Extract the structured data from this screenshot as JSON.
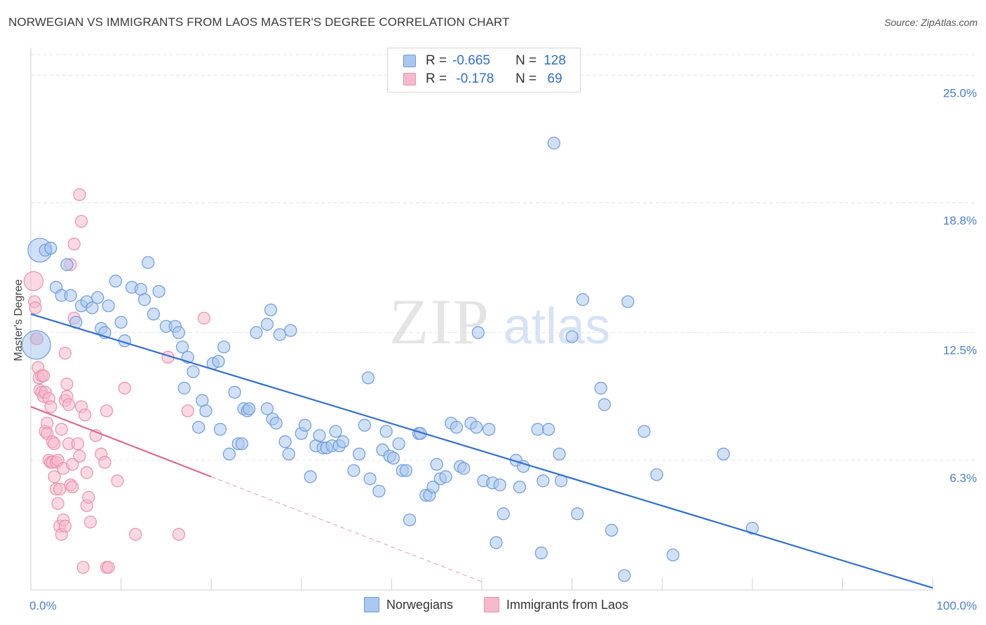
{
  "title": "NORWEGIAN VS IMMIGRANTS FROM LAOS MASTER'S DEGREE CORRELATION CHART",
  "source": "Source: ZipAtlas.com",
  "watermark": {
    "zip": "ZIP",
    "atlas": "atlas"
  },
  "colors": {
    "blue_fill": "#a9c7ef",
    "blue_stroke": "#6b9be0",
    "blue_line": "#2e6fd1",
    "pink_fill": "#f6b9cc",
    "pink_stroke": "#ec8fac",
    "pink_line": "#e06a93",
    "grid": "#e3e3e3",
    "tick_text": "#4a7fd0"
  },
  "legend": {
    "rows": [
      {
        "r_label": "R =",
        "r_value": "-0.665",
        "n_label": "N =",
        "n_value": "128"
      },
      {
        "r_label": "R =",
        "r_value": " -0.178",
        "n_label": "N =",
        "n_value": " 69"
      }
    ]
  },
  "bottom_legend": {
    "series1": "Norwegians",
    "series2": "Immigrants from Laos"
  },
  "chart_data": {
    "type": "scatter",
    "ylabel": "Master's Degree",
    "xlabel": "",
    "xlim": [
      0,
      100
    ],
    "ylim": [
      0,
      26.2
    ],
    "x_tick_labels": [
      "0.0%",
      "100.0%"
    ],
    "y_ticks": [
      {
        "value": 6.3,
        "label": "6.3%"
      },
      {
        "value": 12.5,
        "label": "12.5%"
      },
      {
        "value": 18.8,
        "label": "18.8%"
      },
      {
        "value": 25.0,
        "label": "25.0%"
      }
    ],
    "series": [
      {
        "name": "Norwegians",
        "r": -0.665,
        "n": 128,
        "trend": {
          "x0": 0,
          "y0": 13.4,
          "x1": 100,
          "y1": 0.1,
          "dashed_to": 100
        },
        "points": [
          [
            1.0,
            16.5,
            2
          ],
          [
            1.6,
            16.5,
            1
          ],
          [
            2.2,
            16.6,
            1
          ],
          [
            0.6,
            11.9,
            2.4
          ],
          [
            2.8,
            14.7,
            1
          ],
          [
            3.4,
            14.3,
            1
          ],
          [
            4.0,
            15.8,
            1
          ],
          [
            4.4,
            14.3,
            1
          ],
          [
            5.0,
            13.0,
            1
          ],
          [
            5.6,
            13.8,
            1
          ],
          [
            6.2,
            14.0,
            1
          ],
          [
            6.8,
            13.7,
            1
          ],
          [
            7.4,
            14.2,
            1
          ],
          [
            7.8,
            12.7,
            1
          ],
          [
            8.6,
            13.8,
            1
          ],
          [
            9.4,
            15.0,
            1
          ],
          [
            8.2,
            12.5,
            1
          ],
          [
            10.4,
            12.1,
            1
          ],
          [
            11.2,
            14.7,
            1
          ],
          [
            12.2,
            14.6,
            1
          ],
          [
            12.6,
            14.1,
            1
          ],
          [
            13.0,
            15.9,
            1
          ],
          [
            10.0,
            13.0,
            1
          ],
          [
            13.6,
            13.4,
            1
          ],
          [
            14.2,
            14.5,
            1
          ],
          [
            15.0,
            12.8,
            1
          ],
          [
            16.0,
            12.8,
            1
          ],
          [
            16.4,
            12.5,
            1
          ],
          [
            16.8,
            11.8,
            1
          ],
          [
            17.4,
            11.3,
            1
          ],
          [
            18.0,
            10.6,
            1
          ],
          [
            17.0,
            9.8,
            1
          ],
          [
            19.0,
            9.2,
            1
          ],
          [
            19.4,
            8.7,
            1
          ],
          [
            20.2,
            11.0,
            1
          ],
          [
            20.8,
            11.1,
            1
          ],
          [
            21.4,
            11.8,
            1
          ],
          [
            22.6,
            9.6,
            1
          ],
          [
            23.6,
            8.8,
            1
          ],
          [
            24.0,
            8.7,
            1
          ],
          [
            24.2,
            8.8,
            1
          ],
          [
            25.0,
            12.5,
            1
          ],
          [
            26.2,
            12.9,
            1
          ],
          [
            26.6,
            13.6,
            1
          ],
          [
            27.6,
            12.4,
            1
          ],
          [
            28.8,
            12.6,
            1
          ],
          [
            18.6,
            7.9,
            1
          ],
          [
            21.0,
            7.8,
            1
          ],
          [
            22.0,
            6.6,
            1
          ],
          [
            23.0,
            7.1,
            1
          ],
          [
            23.4,
            7.1,
            1
          ],
          [
            26.2,
            8.8,
            1
          ],
          [
            26.8,
            8.3,
            1
          ],
          [
            27.2,
            8.1,
            1
          ],
          [
            28.2,
            7.2,
            1
          ],
          [
            28.6,
            6.6,
            1
          ],
          [
            30.0,
            7.6,
            1
          ],
          [
            30.4,
            8.0,
            1
          ],
          [
            31.0,
            5.5,
            1
          ],
          [
            31.6,
            7.0,
            1
          ],
          [
            32.0,
            7.5,
            1
          ],
          [
            32.4,
            6.9,
            1
          ],
          [
            32.8,
            6.9,
            1
          ],
          [
            33.4,
            7.0,
            1
          ],
          [
            33.8,
            7.7,
            1
          ],
          [
            34.2,
            7.0,
            1
          ],
          [
            34.6,
            7.2,
            1
          ],
          [
            35.8,
            5.8,
            1
          ],
          [
            36.4,
            6.6,
            1
          ],
          [
            37.0,
            8.0,
            1
          ],
          [
            37.4,
            10.3,
            1
          ],
          [
            37.6,
            5.4,
            1
          ],
          [
            38.6,
            4.8,
            1
          ],
          [
            39.0,
            6.8,
            1
          ],
          [
            39.4,
            7.7,
            1
          ],
          [
            39.8,
            6.5,
            1
          ],
          [
            40.2,
            6.4,
            1
          ],
          [
            40.8,
            7.1,
            1
          ],
          [
            41.2,
            5.8,
            1
          ],
          [
            41.6,
            5.8,
            1
          ],
          [
            42.0,
            3.4,
            1
          ],
          [
            43.0,
            7.6,
            1
          ],
          [
            43.2,
            7.6,
            1
          ],
          [
            43.8,
            4.6,
            1
          ],
          [
            44.2,
            4.6,
            1
          ],
          [
            44.6,
            5.0,
            1
          ],
          [
            45.0,
            6.1,
            1
          ],
          [
            45.4,
            5.4,
            1
          ],
          [
            46.0,
            5.5,
            1
          ],
          [
            46.6,
            8.1,
            1
          ],
          [
            47.2,
            7.9,
            1
          ],
          [
            47.6,
            6.0,
            1
          ],
          [
            48.0,
            5.9,
            1
          ],
          [
            48.8,
            8.1,
            1
          ],
          [
            49.4,
            7.9,
            1
          ],
          [
            49.6,
            12.5,
            1
          ],
          [
            50.2,
            5.3,
            1
          ],
          [
            50.8,
            7.8,
            1
          ],
          [
            51.2,
            5.2,
            1
          ],
          [
            51.6,
            2.3,
            1
          ],
          [
            52.0,
            5.1,
            1
          ],
          [
            52.4,
            3.7,
            1
          ],
          [
            53.8,
            6.3,
            1
          ],
          [
            54.2,
            5.0,
            1
          ],
          [
            54.6,
            6.0,
            1
          ],
          [
            56.2,
            7.8,
            1
          ],
          [
            56.6,
            1.8,
            1
          ],
          [
            56.8,
            5.3,
            1
          ],
          [
            57.4,
            7.8,
            1
          ],
          [
            58.0,
            21.7,
            1
          ],
          [
            58.6,
            6.6,
            1
          ],
          [
            58.8,
            5.3,
            1
          ],
          [
            60.0,
            12.3,
            1
          ],
          [
            60.6,
            3.7,
            1
          ],
          [
            61.2,
            14.1,
            1
          ],
          [
            63.2,
            9.8,
            1
          ],
          [
            63.6,
            9.0,
            1
          ],
          [
            64.4,
            2.9,
            1
          ],
          [
            66.2,
            14.0,
            1
          ],
          [
            65.8,
            0.7,
            1
          ],
          [
            68.0,
            7.7,
            1
          ],
          [
            69.4,
            5.6,
            1
          ],
          [
            71.2,
            1.7,
            1
          ],
          [
            76.8,
            6.6,
            1
          ],
          [
            80.0,
            3.0,
            1
          ]
        ]
      },
      {
        "name": "Immigrants from Laos",
        "r": -0.178,
        "n": 69,
        "trend": {
          "x0": 0,
          "y0": 8.9,
          "x1": 20,
          "y1": 5.5,
          "dashed_to": 50
        },
        "points": [
          [
            0.3,
            15.0,
            1.6
          ],
          [
            0.4,
            14.0,
            1
          ],
          [
            0.5,
            13.7,
            1
          ],
          [
            0.6,
            12.2,
            1
          ],
          [
            0.7,
            12.2,
            1
          ],
          [
            0.8,
            10.8,
            1
          ],
          [
            0.9,
            10.3,
            1
          ],
          [
            1.0,
            9.7,
            1
          ],
          [
            1.2,
            10.4,
            1
          ],
          [
            1.4,
            10.4,
            1
          ],
          [
            1.2,
            9.6,
            1
          ],
          [
            1.4,
            9.4,
            1
          ],
          [
            1.6,
            9.6,
            1
          ],
          [
            1.6,
            7.7,
            1
          ],
          [
            1.8,
            8.1,
            1
          ],
          [
            1.8,
            7.6,
            1
          ],
          [
            2.0,
            9.3,
            1
          ],
          [
            2.0,
            6.3,
            1
          ],
          [
            2.2,
            6.2,
            1
          ],
          [
            2.2,
            8.9,
            1
          ],
          [
            2.4,
            7.2,
            1
          ],
          [
            2.4,
            6.2,
            1
          ],
          [
            2.6,
            5.5,
            1
          ],
          [
            2.6,
            7.1,
            1
          ],
          [
            2.8,
            6.2,
            1
          ],
          [
            2.8,
            4.9,
            1
          ],
          [
            3.0,
            4.2,
            1
          ],
          [
            3.0,
            6.3,
            1
          ],
          [
            3.2,
            4.9,
            1
          ],
          [
            3.2,
            3.1,
            1
          ],
          [
            3.4,
            2.7,
            1
          ],
          [
            3.4,
            7.8,
            1
          ],
          [
            3.6,
            5.9,
            1
          ],
          [
            3.6,
            3.4,
            1
          ],
          [
            3.8,
            11.5,
            1
          ],
          [
            3.8,
            9.2,
            1
          ],
          [
            3.8,
            3.1,
            1
          ],
          [
            4.0,
            10.0,
            1
          ],
          [
            4.0,
            9.4,
            1
          ],
          [
            4.2,
            7.1,
            1
          ],
          [
            4.2,
            9.0,
            1
          ],
          [
            4.4,
            5.1,
            1
          ],
          [
            4.4,
            15.8,
            1
          ],
          [
            4.6,
            6.1,
            1
          ],
          [
            4.6,
            5.0,
            1
          ],
          [
            4.8,
            13.2,
            1
          ],
          [
            5.2,
            7.1,
            1
          ],
          [
            5.4,
            6.5,
            1
          ],
          [
            5.4,
            19.2,
            1
          ],
          [
            5.6,
            17.9,
            1
          ],
          [
            5.6,
            8.9,
            1
          ],
          [
            5.8,
            1.1,
            1
          ],
          [
            6.0,
            8.5,
            1
          ],
          [
            6.2,
            5.7,
            1
          ],
          [
            6.2,
            4.1,
            1
          ],
          [
            6.4,
            4.5,
            1
          ],
          [
            6.6,
            3.3,
            1
          ],
          [
            7.2,
            7.5,
            1
          ],
          [
            7.8,
            6.6,
            1
          ],
          [
            8.2,
            6.2,
            1
          ],
          [
            8.4,
            8.7,
            1
          ],
          [
            8.4,
            1.1,
            1
          ],
          [
            8.6,
            1.1,
            1
          ],
          [
            9.6,
            5.3,
            1
          ],
          [
            10.4,
            9.8,
            1
          ],
          [
            11.6,
            2.7,
            1
          ],
          [
            15.2,
            11.3,
            1
          ],
          [
            16.4,
            2.7,
            1
          ],
          [
            17.4,
            8.7,
            1
          ],
          [
            19.2,
            13.2,
            1
          ],
          [
            4.8,
            16.8,
            1
          ]
        ]
      }
    ]
  }
}
